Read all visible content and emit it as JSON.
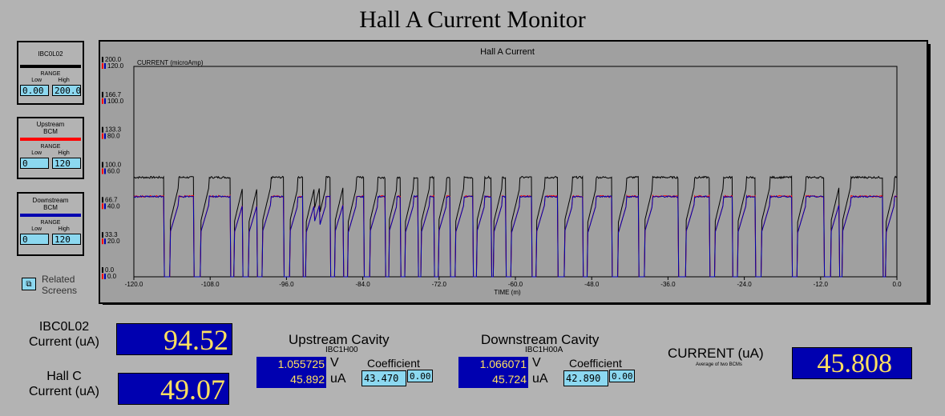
{
  "page_title": "Hall A Current Monitor",
  "panels": [
    {
      "name": "IBC0L02",
      "color": "#000000",
      "range_label": "RANGE",
      "low_label": "Low",
      "high_label": "High",
      "low": "0.00",
      "high": "200.0"
    },
    {
      "name": "Upstream\nBCM",
      "color": "#ff0000",
      "range_label": "RANGE",
      "low_label": "Low",
      "high_label": "High",
      "low": "0",
      "high": "120"
    },
    {
      "name": "Downstream\nBCM",
      "color": "#0000b0",
      "range_label": "RANGE",
      "low_label": "Low",
      "high_label": "High",
      "low": "0",
      "high": "120"
    }
  ],
  "related": {
    "label": "Related\nScreens",
    "icon": "window-stack-icon"
  },
  "chart_data": {
    "type": "line",
    "title": "Hall A Current",
    "ylabel": "CURRENT (microAmp)",
    "xlabel": "TIME (m)",
    "xlim": [
      -120,
      0
    ],
    "x_ticks": [
      "-120.0",
      "-108.0",
      "-96.0",
      "-84.0",
      "-72.0",
      "-60.0",
      "-48.0",
      "-36.0",
      "-24.0",
      "-12.0",
      "0.0"
    ],
    "y_ticks_black": [
      "200.0",
      "166.7",
      "133.3",
      "100.0",
      "66.7",
      "33.3",
      "0.0"
    ],
    "y_ticks_color": [
      "120.0",
      "100.0",
      "80.0",
      "60.0",
      "40.0",
      "20.0",
      "0.0"
    ],
    "series": [
      {
        "color": "#000000",
        "level": 94.5,
        "ylim": [
          0,
          200
        ]
      },
      {
        "color": "#ff0000",
        "level": 45.9,
        "ylim": [
          0,
          120
        ]
      },
      {
        "color": "#0000b0",
        "level": 45.7,
        "ylim": [
          0,
          120
        ]
      }
    ],
    "trips": [
      [
        -115.2,
        -114.3
      ],
      [
        -110.6,
        -109.5
      ],
      [
        -104.8,
        -104.2
      ],
      [
        -103.4,
        -101.9
      ],
      [
        -100.6,
        -99.8
      ],
      [
        -96.4,
        -95.5
      ],
      [
        -93.4,
        -92.9
      ],
      [
        -92.5,
        -92.1
      ],
      [
        -91.6,
        -91.1
      ],
      [
        -89.1,
        -88.4
      ],
      [
        -87.2,
        -86.3
      ],
      [
        -83.8,
        -82.9
      ],
      [
        -80.4,
        -79.9
      ],
      [
        -78.0,
        -77.3
      ],
      [
        -75.3,
        -74.8
      ],
      [
        -72.8,
        -72.1
      ],
      [
        -70.2,
        -69.4
      ],
      [
        -66.7,
        -66.1
      ],
      [
        -63.8,
        -63.4
      ],
      [
        -61.5,
        -60.6
      ],
      [
        -57.4,
        -56.7
      ],
      [
        -53.3,
        -52.3
      ],
      [
        -49.4,
        -48.6
      ],
      [
        -44.8,
        -43.8
      ],
      [
        -40.6,
        -39.7
      ],
      [
        -34.4,
        -33.2
      ],
      [
        -29.5,
        -28.6
      ],
      [
        -25.8,
        -25.0
      ],
      [
        -22.2,
        -21.3
      ],
      [
        -16.5,
        -15.6
      ],
      [
        -11.4,
        -10.4
      ],
      [
        -9.4,
        -8.6
      ],
      [
        -2.2,
        -1.7
      ]
    ]
  },
  "readouts": {
    "ibc_label": "IBC0L02\nCurrent (uA)",
    "ibc_value": "94.52",
    "hallc_label": "Hall C\nCurrent (uA)",
    "hallc_value": "49.07",
    "current_label": "CURRENT (uA)",
    "current_sub": "Average of two BCMs",
    "current_value": "45.808"
  },
  "upstream": {
    "title": "Upstream Cavity",
    "sub": "IBC1H00",
    "volts": "1.055725",
    "v_unit": "V",
    "ua": "45.892",
    "ua_unit": "uA",
    "coef_label": "Coefficient",
    "coef": "43.470",
    "offset": "0.00"
  },
  "downstream": {
    "title": "Downstream Cavity",
    "sub": "IBC1H00A",
    "volts": "1.066071",
    "v_unit": "V",
    "ua": "45.724",
    "ua_unit": "uA",
    "coef_label": "Coefficient",
    "coef": "42.890",
    "offset": "0.00"
  }
}
